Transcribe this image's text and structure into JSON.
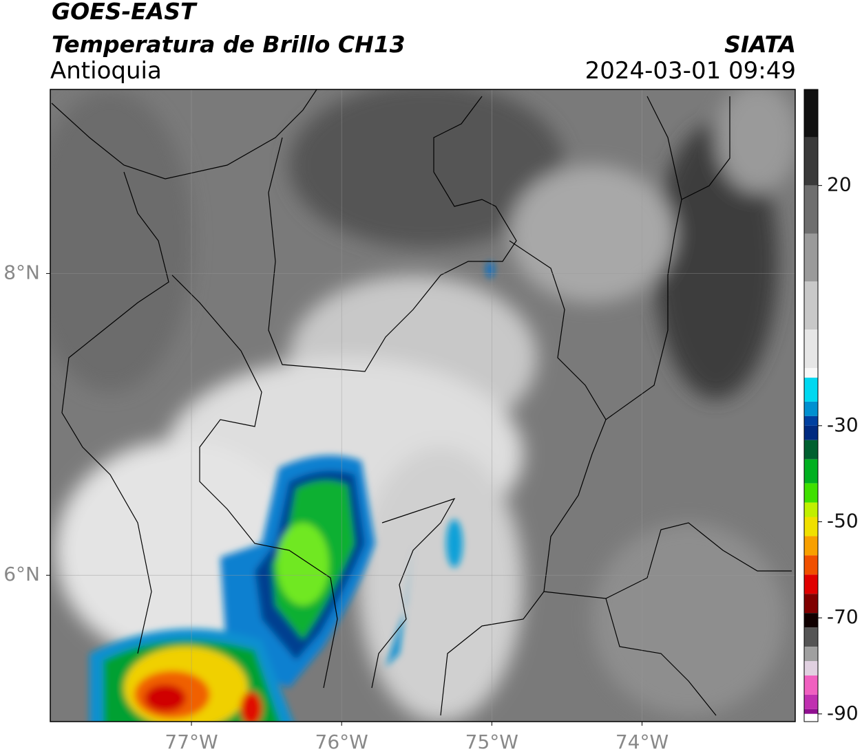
{
  "header": {
    "title": "GOES-EAST",
    "subtitle": "Temperatura de Brillo CH13",
    "region": "Antioquia",
    "source": "SIATA",
    "datetime": "2024-03-01 09:49"
  },
  "map": {
    "lon_range": [
      -77.94,
      -72.98
    ],
    "lat_range": [
      5.03,
      9.22
    ],
    "lon_ticks": [
      {
        "value": -77,
        "label": "77°W"
      },
      {
        "value": -76,
        "label": "76°W"
      },
      {
        "value": -75,
        "label": "75°W"
      },
      {
        "value": -74,
        "label": "74°W"
      }
    ],
    "lat_ticks": [
      {
        "value": 8,
        "label": "8°N"
      },
      {
        "value": 6,
        "label": "6°N"
      }
    ],
    "grid": true
  },
  "colorbar": {
    "range": [
      -91.6,
      40
    ],
    "ticks": [
      20,
      -30,
      -50,
      -70,
      -90
    ],
    "stops": [
      {
        "value": 40,
        "color": "#111111"
      },
      {
        "value": 30,
        "color": "#3a3a3a"
      },
      {
        "value": 20,
        "color": "#6e6e6e"
      },
      {
        "value": 10,
        "color": "#9a9a9a"
      },
      {
        "value": 0,
        "color": "#c8c8c8"
      },
      {
        "value": -10,
        "color": "#e6e6e6"
      },
      {
        "value": -18,
        "color": "#f8f8f8"
      },
      {
        "value": -20,
        "color": "#00d8f0"
      },
      {
        "value": -25,
        "color": "#0090d0"
      },
      {
        "value": -28,
        "color": "#0040a0"
      },
      {
        "value": -30,
        "color": "#002a80"
      },
      {
        "value": -33,
        "color": "#006030"
      },
      {
        "value": -37,
        "color": "#00b020"
      },
      {
        "value": -42,
        "color": "#40e000"
      },
      {
        "value": -46,
        "color": "#c0f000"
      },
      {
        "value": -49,
        "color": "#f0e000"
      },
      {
        "value": -53,
        "color": "#f8a000"
      },
      {
        "value": -57,
        "color": "#f05000"
      },
      {
        "value": -61,
        "color": "#e00000"
      },
      {
        "value": -65,
        "color": "#800000"
      },
      {
        "value": -69,
        "color": "#100000"
      },
      {
        "value": -72,
        "color": "#555555"
      },
      {
        "value": -76,
        "color": "#a0a0a0"
      },
      {
        "value": -79,
        "color": "#e0d0e0"
      },
      {
        "value": -82,
        "color": "#f060c0"
      },
      {
        "value": -86,
        "color": "#c030b0"
      },
      {
        "value": -89,
        "color": "#901090"
      },
      {
        "value": -90,
        "color": "#ffffff"
      }
    ]
  }
}
